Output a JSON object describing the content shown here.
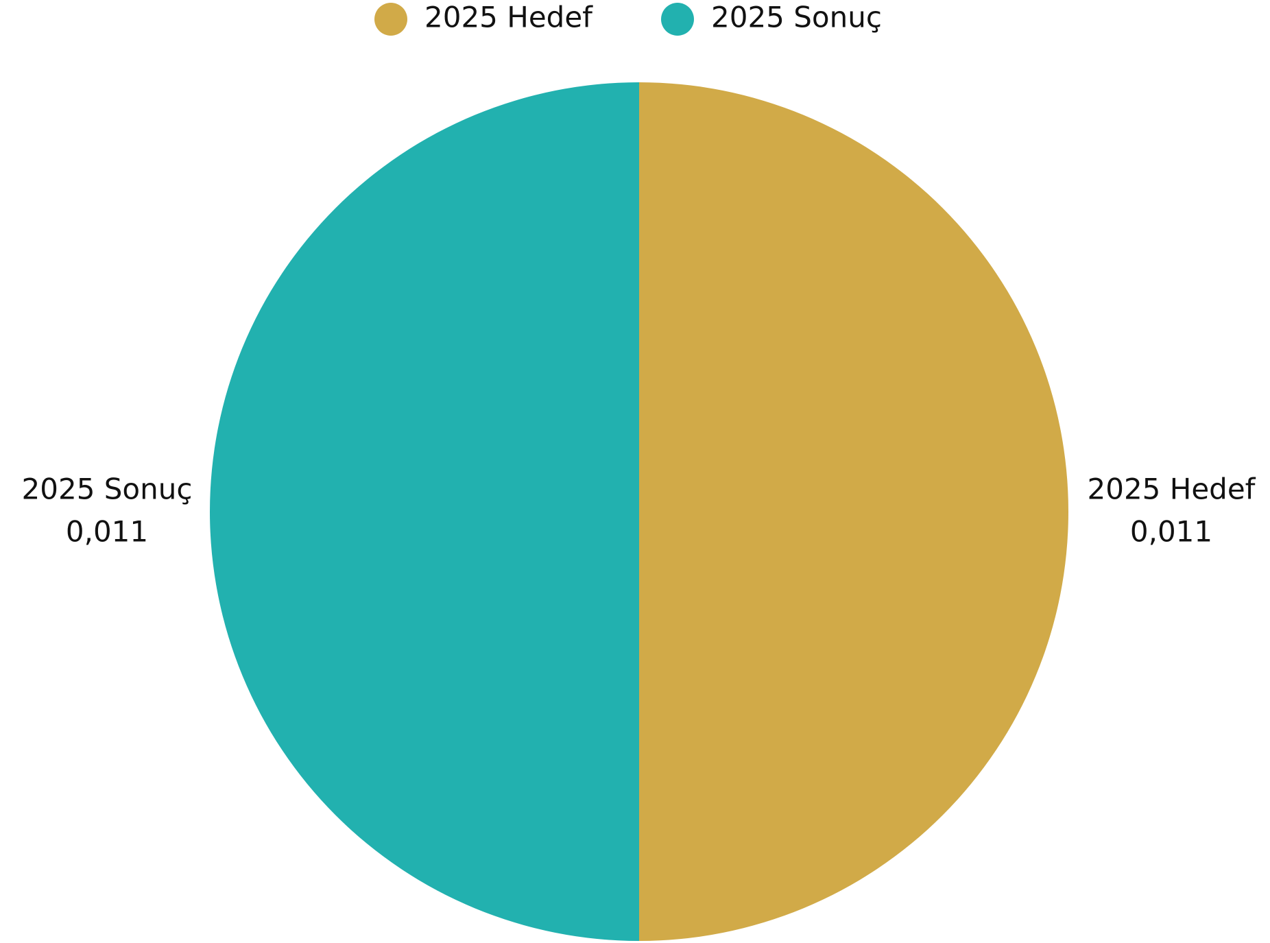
{
  "chart_data": {
    "type": "pie",
    "categories": [
      "2025 Hedef",
      "2025 Sonuç"
    ],
    "values": [
      0.011,
      0.011
    ],
    "value_labels": [
      "0,011",
      "0,011"
    ],
    "colors": [
      "#d1aa48",
      "#22b1af"
    ],
    "legend": "top"
  }
}
